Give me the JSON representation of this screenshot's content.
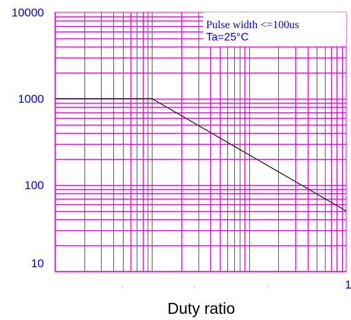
{
  "chart_data": {
    "type": "line",
    "xlabel": "Duty ratio",
    "ylabel": "",
    "x_scale": "log",
    "y_scale": "log",
    "xlim": [
      0.001,
      1
    ],
    "ylim": [
      10,
      10000
    ],
    "grid": true,
    "y_tick_labels": [
      "10000",
      "1000",
      "100",
      "10"
    ],
    "x_tick_labels": [
      "",
      "",
      "",
      "1"
    ],
    "annotations": [
      "Pulse width <=100us",
      "Ta=25°C"
    ],
    "series": [
      {
        "x": [
          0.001,
          0.01,
          1
        ],
        "y": [
          1000,
          1000,
          50
        ]
      }
    ],
    "colors": {
      "grid": "#e000c8",
      "line": "#000000",
      "ticks": "#0000ee"
    }
  }
}
